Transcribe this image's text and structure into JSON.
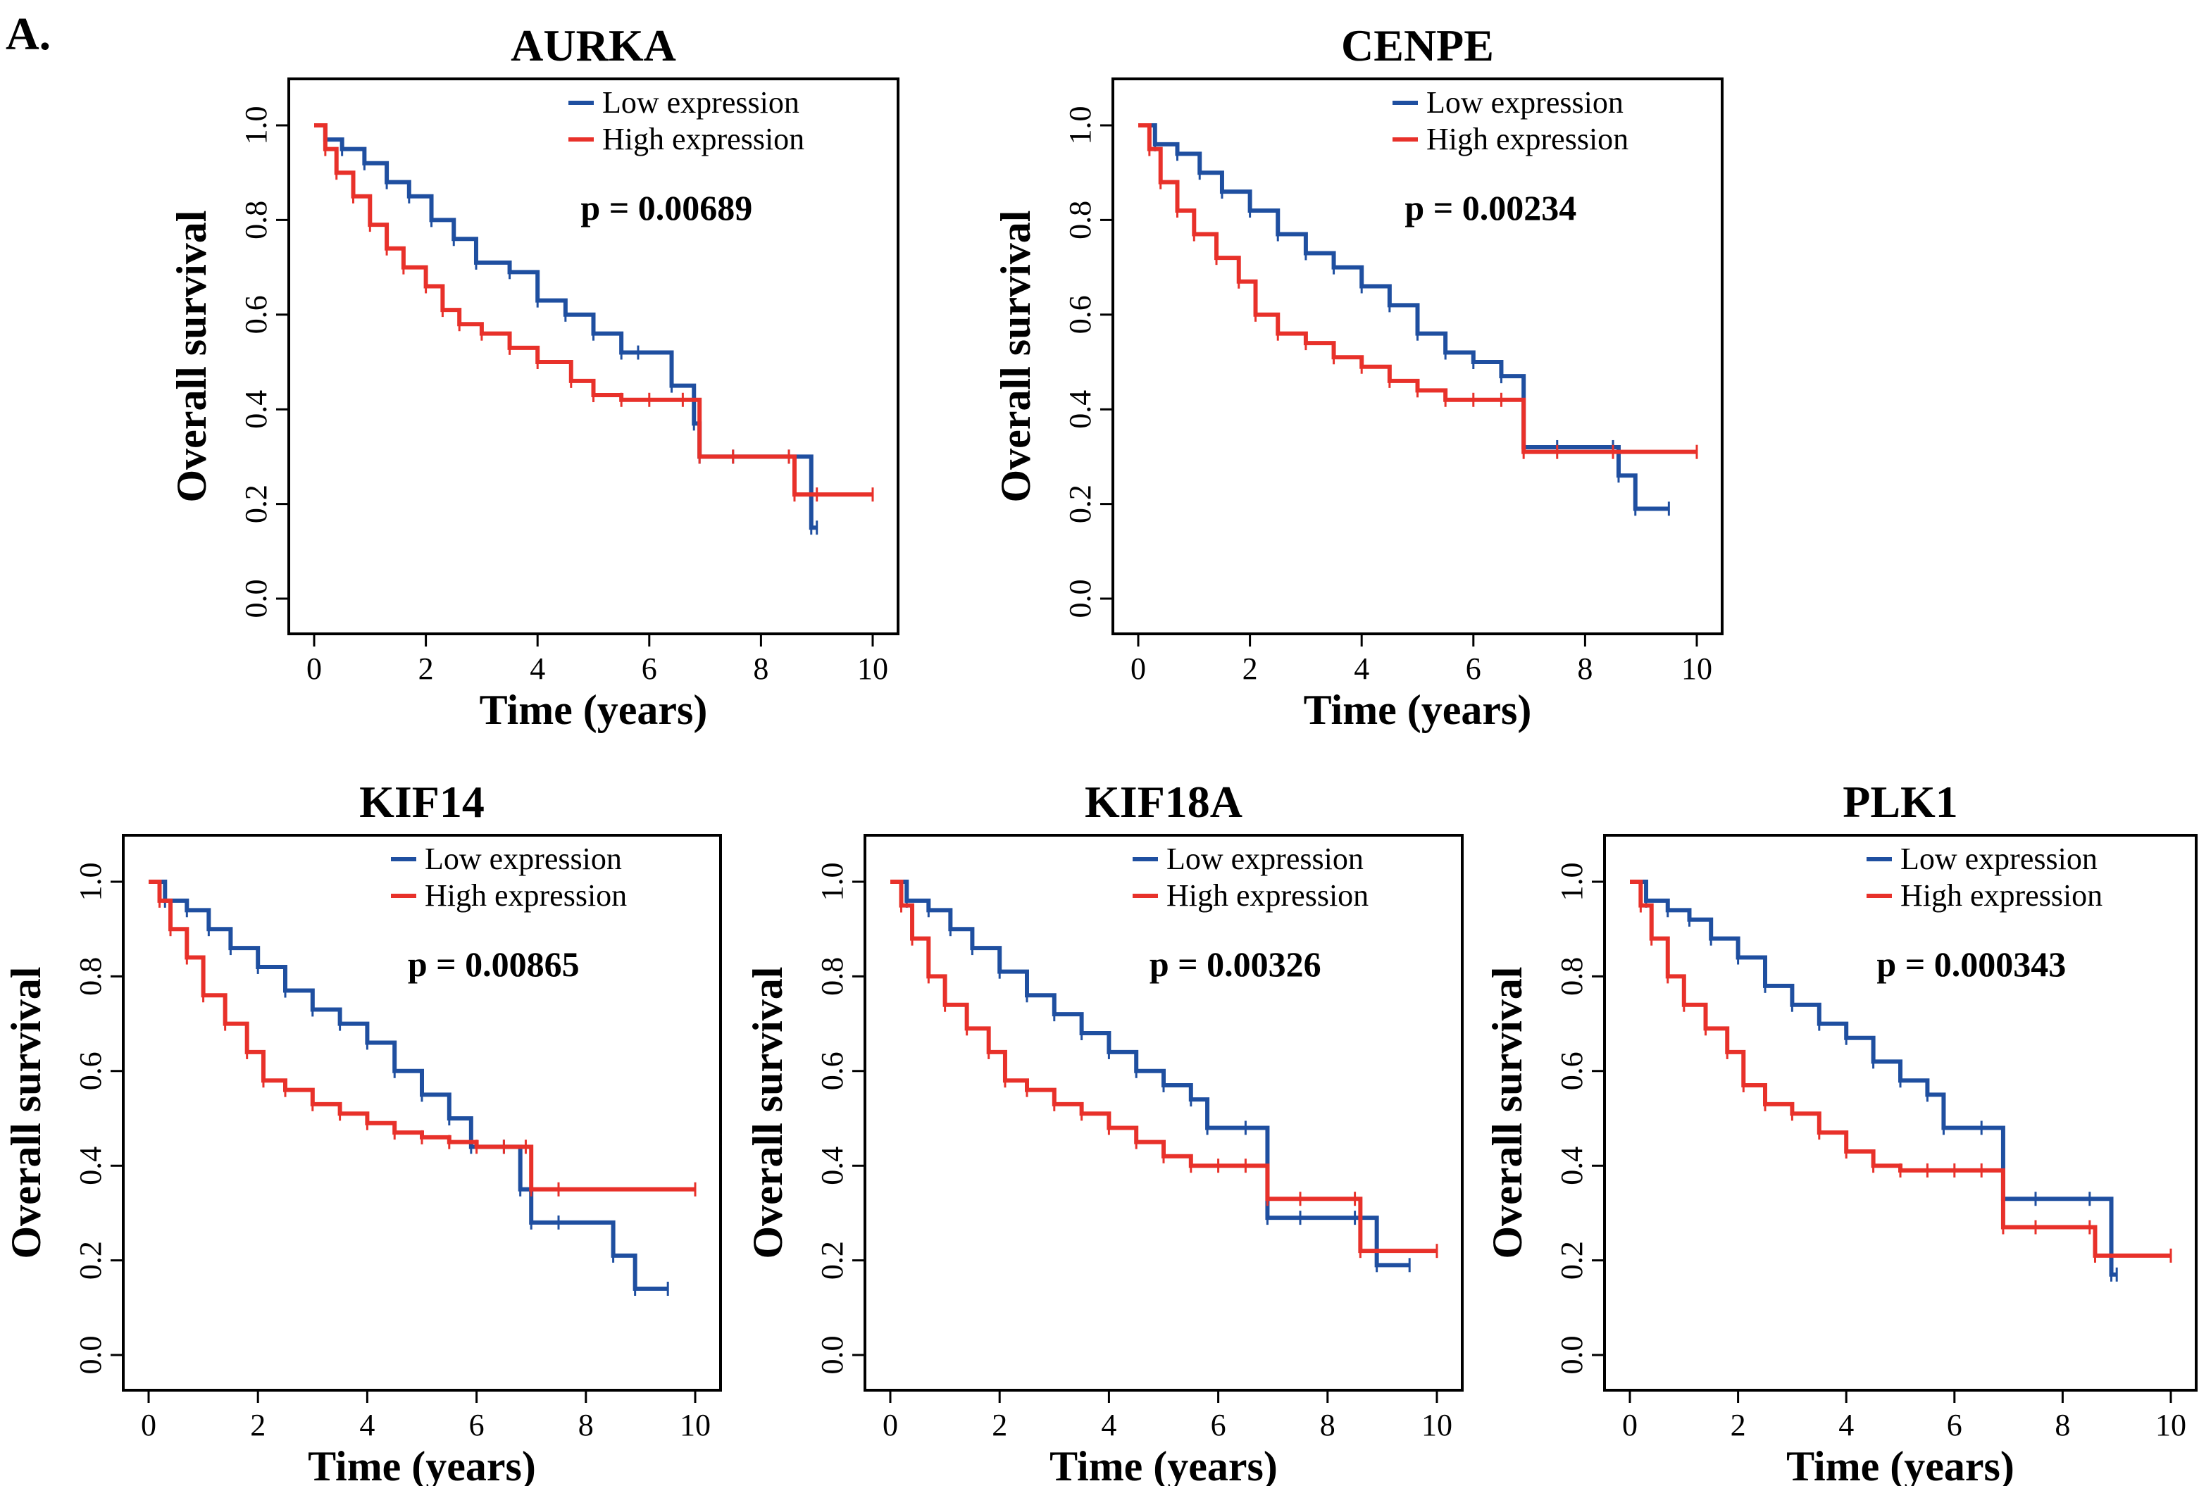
{
  "figure": {
    "panel_label": "A."
  },
  "colors": {
    "low": "#1f4fa0",
    "high": "#e8312a",
    "axis": "#000000"
  },
  "chart_data": [
    {
      "type": "line",
      "subtype": "kaplan-meier",
      "title": "AURKA",
      "xlabel": "Time (years)",
      "ylabel": "Overall survival",
      "xlim": [
        0,
        10
      ],
      "ylim": [
        0,
        1
      ],
      "xticks": [
        0,
        2,
        4,
        6,
        8,
        10
      ],
      "yticks": [
        0.0,
        0.2,
        0.4,
        0.6,
        0.8,
        1.0
      ],
      "legend": [
        "Low expression",
        "High expression"
      ],
      "legend_position": "top-right",
      "pvalue": "p = 0.00689",
      "series": [
        {
          "name": "Low expression",
          "x": [
            0,
            0.2,
            0.5,
            0.9,
            1.3,
            1.7,
            2.1,
            2.5,
            2.9,
            3.5,
            4.0,
            4.5,
            5.0,
            5.5,
            5.8,
            6.4,
            6.8,
            6.9,
            7.5,
            8.5,
            8.9,
            9.0
          ],
          "y": [
            1.0,
            0.97,
            0.95,
            0.92,
            0.88,
            0.85,
            0.8,
            0.76,
            0.71,
            0.69,
            0.63,
            0.6,
            0.56,
            0.52,
            0.52,
            0.45,
            0.37,
            0.3,
            0.3,
            0.3,
            0.15,
            0.15
          ]
        },
        {
          "name": "High expression",
          "x": [
            0,
            0.2,
            0.4,
            0.7,
            1.0,
            1.3,
            1.6,
            2.0,
            2.3,
            2.6,
            3.0,
            3.5,
            4.0,
            4.6,
            5.0,
            5.5,
            6.0,
            6.6,
            6.9,
            7.5,
            8.5,
            8.6,
            9.0,
            10.0
          ],
          "y": [
            1.0,
            0.95,
            0.9,
            0.85,
            0.79,
            0.74,
            0.7,
            0.66,
            0.61,
            0.58,
            0.56,
            0.53,
            0.5,
            0.46,
            0.43,
            0.42,
            0.42,
            0.42,
            0.3,
            0.3,
            0.3,
            0.22,
            0.22,
            0.22
          ]
        }
      ]
    },
    {
      "type": "line",
      "subtype": "kaplan-meier",
      "title": "CENPE",
      "xlabel": "Time (years)",
      "ylabel": "Overall survival",
      "xlim": [
        0,
        10
      ],
      "ylim": [
        0,
        1
      ],
      "xticks": [
        0,
        2,
        4,
        6,
        8,
        10
      ],
      "yticks": [
        0.0,
        0.2,
        0.4,
        0.6,
        0.8,
        1.0
      ],
      "legend": [
        "Low expression",
        "High expression"
      ],
      "legend_position": "top-right",
      "pvalue": "p = 0.00234",
      "series": [
        {
          "name": "Low expression",
          "x": [
            0,
            0.3,
            0.7,
            1.1,
            1.5,
            2.0,
            2.5,
            3.0,
            3.5,
            4.0,
            4.5,
            5.0,
            5.5,
            6.0,
            6.5,
            6.9,
            7.5,
            8.5,
            8.6,
            8.9,
            9.5
          ],
          "y": [
            1.0,
            0.96,
            0.94,
            0.9,
            0.86,
            0.82,
            0.77,
            0.73,
            0.7,
            0.66,
            0.62,
            0.56,
            0.52,
            0.5,
            0.47,
            0.32,
            0.32,
            0.32,
            0.26,
            0.19,
            0.19
          ]
        },
        {
          "name": "High expression",
          "x": [
            0,
            0.2,
            0.4,
            0.7,
            1.0,
            1.4,
            1.8,
            2.1,
            2.5,
            3.0,
            3.5,
            4.0,
            4.5,
            5.0,
            5.5,
            6.0,
            6.5,
            6.9,
            7.5,
            8.5,
            10.0
          ],
          "y": [
            1.0,
            0.95,
            0.88,
            0.82,
            0.77,
            0.72,
            0.67,
            0.6,
            0.56,
            0.54,
            0.51,
            0.49,
            0.46,
            0.44,
            0.42,
            0.42,
            0.42,
            0.31,
            0.31,
            0.31,
            0.31
          ]
        }
      ]
    },
    {
      "type": "line",
      "subtype": "kaplan-meier",
      "title": "KIF14",
      "xlabel": "Time (years)",
      "ylabel": "Overall survival",
      "xlim": [
        0,
        10
      ],
      "ylim": [
        0,
        1
      ],
      "xticks": [
        0,
        2,
        4,
        6,
        8,
        10
      ],
      "yticks": [
        0.0,
        0.2,
        0.4,
        0.6,
        0.8,
        1.0
      ],
      "legend": [
        "Low expression",
        "High expression"
      ],
      "legend_position": "top-right",
      "pvalue": "p = 0.00865",
      "series": [
        {
          "name": "Low expression",
          "x": [
            0,
            0.3,
            0.7,
            1.1,
            1.5,
            2.0,
            2.5,
            3.0,
            3.5,
            4.0,
            4.5,
            5.0,
            5.5,
            5.9,
            6.5,
            6.8,
            7.0,
            7.5,
            8.5,
            8.9,
            9.5
          ],
          "y": [
            1.0,
            0.96,
            0.94,
            0.9,
            0.86,
            0.82,
            0.77,
            0.73,
            0.7,
            0.66,
            0.6,
            0.55,
            0.5,
            0.44,
            0.44,
            0.35,
            0.28,
            0.28,
            0.21,
            0.14,
            0.14
          ]
        },
        {
          "name": "High expression",
          "x": [
            0,
            0.2,
            0.4,
            0.7,
            1.0,
            1.4,
            1.8,
            2.1,
            2.5,
            3.0,
            3.5,
            4.0,
            4.5,
            5.0,
            5.5,
            6.0,
            6.5,
            6.9,
            7.0,
            7.5,
            10.0
          ],
          "y": [
            1.0,
            0.96,
            0.9,
            0.84,
            0.76,
            0.7,
            0.64,
            0.58,
            0.56,
            0.53,
            0.51,
            0.49,
            0.47,
            0.46,
            0.45,
            0.44,
            0.44,
            0.44,
            0.35,
            0.35,
            0.35
          ]
        }
      ]
    },
    {
      "type": "line",
      "subtype": "kaplan-meier",
      "title": "KIF18A",
      "xlabel": "Time (years)",
      "ylabel": "Overall survival",
      "xlim": [
        0,
        10
      ],
      "ylim": [
        0,
        1
      ],
      "xticks": [
        0,
        2,
        4,
        6,
        8,
        10
      ],
      "yticks": [
        0.0,
        0.2,
        0.4,
        0.6,
        0.8,
        1.0
      ],
      "legend": [
        "Low expression",
        "High expression"
      ],
      "legend_position": "top-right",
      "pvalue": "p = 0.00326",
      "series": [
        {
          "name": "Low expression",
          "x": [
            0,
            0.3,
            0.7,
            1.1,
            1.5,
            2.0,
            2.5,
            3.0,
            3.5,
            4.0,
            4.5,
            5.0,
            5.5,
            5.8,
            6.5,
            6.9,
            7.5,
            8.5,
            8.9,
            9.5
          ],
          "y": [
            1.0,
            0.96,
            0.94,
            0.9,
            0.86,
            0.81,
            0.76,
            0.72,
            0.68,
            0.64,
            0.6,
            0.57,
            0.54,
            0.48,
            0.48,
            0.29,
            0.29,
            0.29,
            0.19,
            0.19
          ]
        },
        {
          "name": "High expression",
          "x": [
            0,
            0.2,
            0.4,
            0.7,
            1.0,
            1.4,
            1.8,
            2.1,
            2.5,
            3.0,
            3.5,
            4.0,
            4.5,
            5.0,
            5.5,
            6.0,
            6.5,
            6.9,
            7.5,
            8.5,
            8.6,
            10.0
          ],
          "y": [
            1.0,
            0.95,
            0.88,
            0.8,
            0.74,
            0.69,
            0.64,
            0.58,
            0.56,
            0.53,
            0.51,
            0.48,
            0.45,
            0.42,
            0.4,
            0.4,
            0.4,
            0.33,
            0.33,
            0.33,
            0.22,
            0.22
          ]
        }
      ]
    },
    {
      "type": "line",
      "subtype": "kaplan-meier",
      "title": "PLK1",
      "xlabel": "Time (years)",
      "ylabel": "Overall survival",
      "xlim": [
        0,
        10
      ],
      "ylim": [
        0,
        1
      ],
      "xticks": [
        0,
        2,
        4,
        6,
        8,
        10
      ],
      "yticks": [
        0.0,
        0.2,
        0.4,
        0.6,
        0.8,
        1.0
      ],
      "legend": [
        "Low expression",
        "High expression"
      ],
      "legend_position": "top-right",
      "pvalue": "p = 0.000343",
      "series": [
        {
          "name": "Low expression",
          "x": [
            0,
            0.3,
            0.7,
            1.1,
            1.5,
            2.0,
            2.5,
            3.0,
            3.5,
            4.0,
            4.5,
            5.0,
            5.5,
            5.8,
            6.5,
            6.9,
            7.5,
            8.5,
            8.9,
            9.0
          ],
          "y": [
            1.0,
            0.96,
            0.94,
            0.92,
            0.88,
            0.84,
            0.78,
            0.74,
            0.7,
            0.67,
            0.62,
            0.58,
            0.55,
            0.48,
            0.48,
            0.33,
            0.33,
            0.33,
            0.17,
            0.17
          ]
        },
        {
          "name": "High expression",
          "x": [
            0,
            0.2,
            0.4,
            0.7,
            1.0,
            1.4,
            1.8,
            2.1,
            2.5,
            3.0,
            3.5,
            4.0,
            4.5,
            5.0,
            5.5,
            6.0,
            6.5,
            6.9,
            7.5,
            8.5,
            8.6,
            10.0
          ],
          "y": [
            1.0,
            0.95,
            0.88,
            0.8,
            0.74,
            0.69,
            0.64,
            0.57,
            0.53,
            0.51,
            0.47,
            0.43,
            0.4,
            0.39,
            0.39,
            0.39,
            0.39,
            0.27,
            0.27,
            0.27,
            0.21,
            0.21
          ]
        }
      ]
    }
  ]
}
